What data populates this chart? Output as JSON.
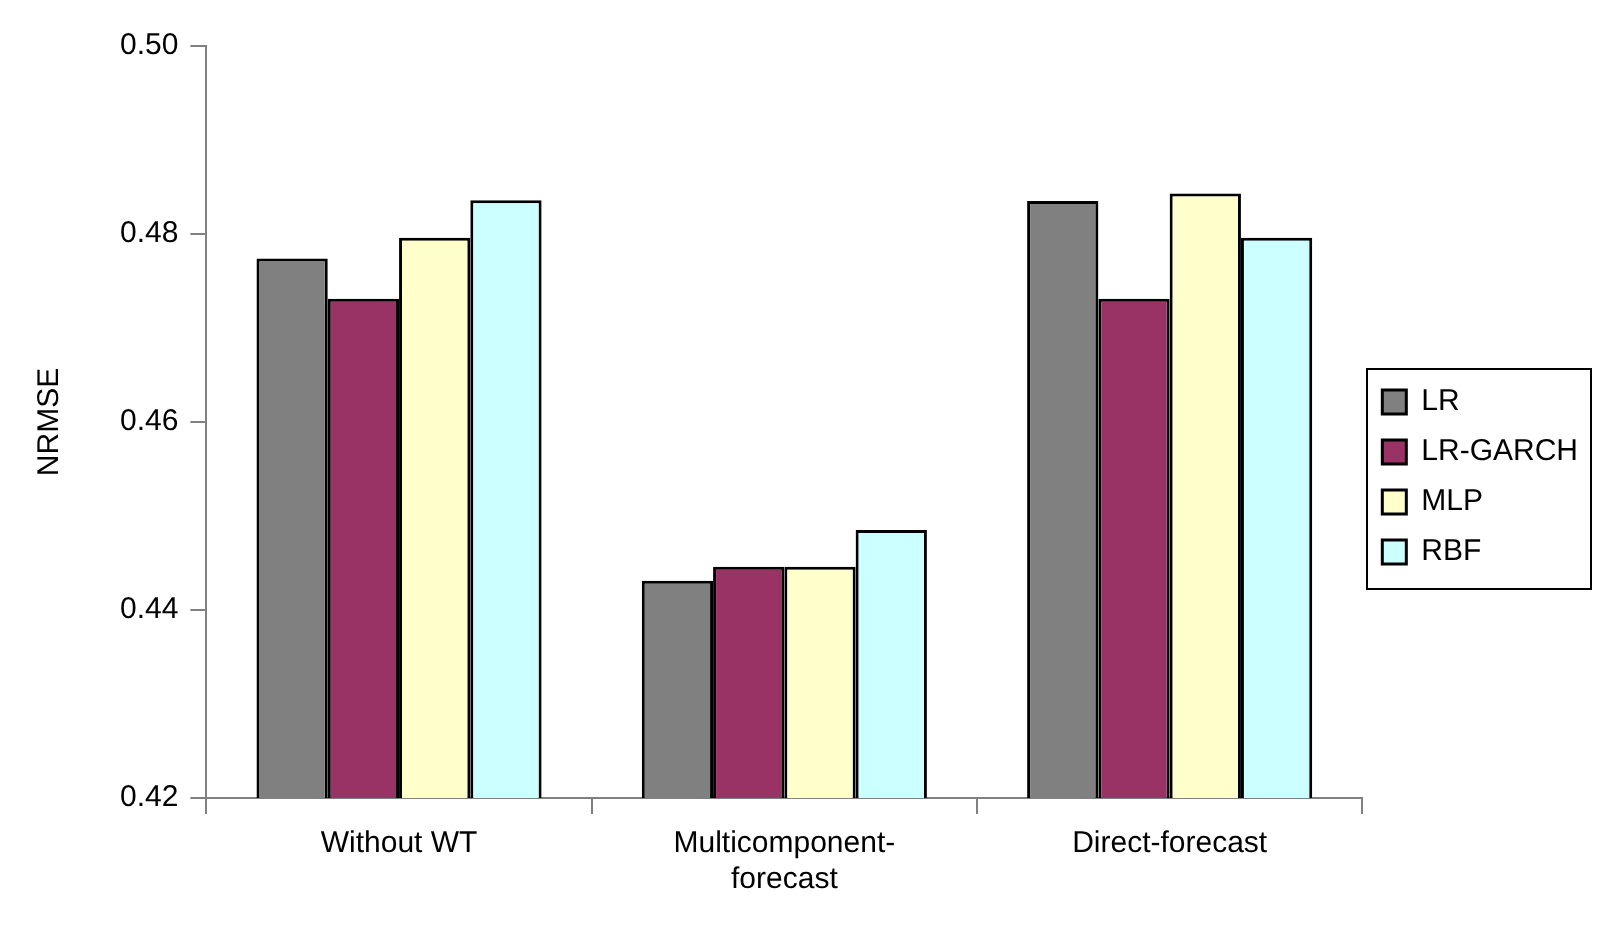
{
  "chart_data": {
    "type": "bar",
    "ylabel": "NRMSE",
    "categories": [
      "Without WT",
      "Multicomponent-forecast",
      "Direct-forecast"
    ],
    "series": [
      {
        "name": "LR",
        "color": "#808080",
        "values": [
          0.4774,
          0.4431,
          0.4835
        ]
      },
      {
        "name": "LR-GARCH",
        "color": "#993366",
        "values": [
          0.4731,
          0.4446,
          0.4731
        ]
      },
      {
        "name": "MLP",
        "color": "#ffffcc",
        "values": [
          0.4796,
          0.4446,
          0.4843
        ]
      },
      {
        "name": "RBF",
        "color": "#ccffff",
        "values": [
          0.4836,
          0.4485,
          0.4796
        ]
      }
    ],
    "ylim": [
      0.42,
      0.5
    ],
    "yticks": [
      {
        "value": 0.42,
        "label": "0.42"
      },
      {
        "value": 0.44,
        "label": "0.44"
      },
      {
        "value": 0.46,
        "label": "0.46"
      },
      {
        "value": 0.48,
        "label": "0.48"
      },
      {
        "value": 0.5,
        "label": "0.50"
      }
    ],
    "grid": false,
    "legend": "right"
  }
}
